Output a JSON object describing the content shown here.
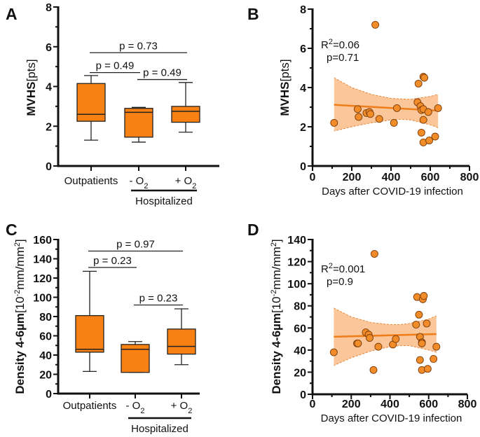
{
  "colors": {
    "box": "#f98012",
    "point": "#f28c28",
    "point_edge": "#7a3c08",
    "band": "#f9c08f",
    "band_edge": "#e8893a",
    "fit_line": "#ee7d1a",
    "axis": "#111111"
  },
  "chart_data": [
    {
      "panel": "A",
      "type": "box",
      "ylabel_main": "MVHS",
      "ylabel_unit": [
        {
          "t": "[pts]"
        }
      ],
      "ylim": [
        0,
        8
      ],
      "yticks": [
        "0",
        "2",
        "4",
        "6",
        "8"
      ],
      "ytick_values": [
        0,
        2,
        4,
        6,
        8
      ],
      "minor_step": 1,
      "categories": [
        {
          "text": "Outpatients"
        },
        {
          "text": "- O",
          "sub": "2"
        },
        {
          "text": "+ O",
          "sub": "2"
        }
      ],
      "group_label": "Hospitalized",
      "boxes": [
        {
          "min": 1.3,
          "q1": 2.25,
          "median": 2.6,
          "q3": 4.15,
          "max": 4.55
        },
        {
          "min": 1.2,
          "q1": 1.45,
          "median": 2.7,
          "q3": 2.9,
          "max": 2.95
        },
        {
          "min": 1.7,
          "q1": 2.2,
          "median": 2.75,
          "q3": 3.0,
          "max": 4.2
        }
      ],
      "comparisons": [
        {
          "from": 0,
          "to": 2,
          "y": 5.7,
          "label": "p = 0.73"
        },
        {
          "from": 0,
          "to": 1,
          "y": 4.7,
          "label": "p = 0.49"
        },
        {
          "from": 1,
          "to": 2,
          "y": 4.35,
          "label": "p = 0.49"
        }
      ]
    },
    {
      "panel": "B",
      "type": "scatter",
      "ylabel_main": "MVHS",
      "ylabel_unit": [
        {
          "t": "[pts]"
        }
      ],
      "xlabel": "Days after COVID-19 infection",
      "xlim": [
        0,
        800
      ],
      "xticks": [
        "0",
        "200",
        "400",
        "600",
        "800"
      ],
      "xtick_values": [
        0,
        200,
        400,
        600,
        800
      ],
      "x_minor_step": 100,
      "ylim": [
        0,
        8
      ],
      "yticks": [
        "0",
        "2",
        "4",
        "6",
        "8"
      ],
      "ytick_values": [
        0,
        2,
        4,
        6,
        8
      ],
      "minor_step": 1,
      "annotation": {
        "r2_prefix": "R",
        "r2_sup": "2",
        "r2_value": "=0.06",
        "p": "p=0.71"
      },
      "points": [
        [
          110,
          2.2
        ],
        [
          230,
          2.9
        ],
        [
          235,
          2.5
        ],
        [
          275,
          2.7
        ],
        [
          290,
          2.75
        ],
        [
          295,
          2.65
        ],
        [
          320,
          7.2
        ],
        [
          340,
          2.4
        ],
        [
          415,
          2.2
        ],
        [
          430,
          2.95
        ],
        [
          535,
          3.25
        ],
        [
          540,
          4.2
        ],
        [
          550,
          3.05
        ],
        [
          555,
          2.85
        ],
        [
          555,
          1.7
        ],
        [
          565,
          2.9
        ],
        [
          565,
          2.35
        ],
        [
          565,
          1.2
        ],
        [
          565,
          4.55
        ],
        [
          570,
          4.5
        ],
        [
          590,
          2.75
        ],
        [
          595,
          1.3
        ],
        [
          625,
          1.5
        ],
        [
          640,
          2.95
        ]
      ],
      "fit": {
        "x": [
          110,
          640
        ],
        "y": [
          3.12,
          2.82
        ]
      },
      "ci_band": {
        "x": [
          110,
          200,
          300,
          400,
          450,
          500,
          600,
          640
        ],
        "lower": [
          1.78,
          2.0,
          2.2,
          2.35,
          2.38,
          2.35,
          2.1,
          1.95
        ],
        "upper": [
          4.5,
          4.0,
          3.65,
          3.45,
          3.42,
          3.4,
          3.55,
          3.65
        ]
      }
    },
    {
      "panel": "C",
      "type": "box",
      "ylabel_main": "Density 4-6µm",
      "ylabel_unit": [
        {
          "t": "[10"
        },
        {
          "t": "-2",
          "sup": true
        },
        {
          "t": "mm/mm"
        },
        {
          "t": "2",
          "sup": true
        },
        {
          "t": "]"
        }
      ],
      "ylim": [
        0,
        160
      ],
      "yticks": [
        "0",
        "20",
        "40",
        "60",
        "80",
        "100",
        "120",
        "140",
        "160"
      ],
      "ytick_values": [
        0,
        20,
        40,
        60,
        80,
        100,
        120,
        140,
        160
      ],
      "minor_step": 10,
      "categories": [
        {
          "text": "Outpatients"
        },
        {
          "text": "- O",
          "sub": "2"
        },
        {
          "text": "+ O",
          "sub": "2"
        }
      ],
      "group_label": "Hospitalized",
      "boxes": [
        {
          "min": 23,
          "q1": 43,
          "median": 46,
          "q3": 81,
          "max": 127
        },
        {
          "min": 22,
          "q1": 22,
          "median": 46,
          "q3": 51,
          "max": 54
        },
        {
          "min": 30,
          "q1": 41,
          "median": 49,
          "q3": 67,
          "max": 88
        }
      ],
      "comparisons": [
        {
          "from": 0,
          "to": 2,
          "y": 148,
          "label": "p = 0.97"
        },
        {
          "from": 0,
          "to": 1,
          "y": 131,
          "label": "p = 0.23"
        },
        {
          "from": 1,
          "to": 2,
          "y": 92,
          "label": "p = 0.23"
        }
      ]
    },
    {
      "panel": "D",
      "type": "scatter",
      "ylabel_main": "Density 4-6µm",
      "ylabel_unit": [
        {
          "t": "[10"
        },
        {
          "t": "-2",
          "sup": true
        },
        {
          "t": "mm/mm"
        },
        {
          "t": "2",
          "sup": true
        },
        {
          "t": "]"
        }
      ],
      "xlabel": "Days after COVID-19 infection",
      "xlim": [
        0,
        800
      ],
      "xticks": [
        "0",
        "200",
        "400",
        "600",
        "800"
      ],
      "xtick_values": [
        0,
        200,
        400,
        600,
        800
      ],
      "x_minor_step": 100,
      "ylim": [
        0,
        140
      ],
      "yticks": [
        "0",
        "20",
        "40",
        "60",
        "80",
        "100",
        "120",
        "140"
      ],
      "ytick_values": [
        0,
        20,
        40,
        60,
        80,
        100,
        120,
        140
      ],
      "minor_step": 10,
      "annotation": {
        "r2_prefix": "R",
        "r2_sup": "2",
        "r2_value": "=0.001",
        "p": "p=0.9"
      },
      "points": [
        [
          110,
          38
        ],
        [
          230,
          46
        ],
        [
          235,
          46
        ],
        [
          275,
          56
        ],
        [
          290,
          54
        ],
        [
          295,
          51
        ],
        [
          315,
          22
        ],
        [
          320,
          127
        ],
        [
          340,
          43
        ],
        [
          415,
          45
        ],
        [
          430,
          50
        ],
        [
          535,
          63
        ],
        [
          540,
          88
        ],
        [
          550,
          72
        ],
        [
          555,
          52
        ],
        [
          555,
          31
        ],
        [
          565,
          47
        ],
        [
          565,
          46
        ],
        [
          565,
          22
        ],
        [
          570,
          86
        ],
        [
          575,
          89
        ],
        [
          590,
          64
        ],
        [
          595,
          23
        ],
        [
          625,
          32
        ],
        [
          640,
          43
        ]
      ],
      "fit": {
        "x": [
          110,
          640
        ],
        "y": [
          52,
          54.5
        ]
      },
      "ci_band": {
        "x": [
          110,
          200,
          300,
          400,
          450,
          500,
          600,
          640
        ],
        "lower": [
          26,
          33,
          39,
          43,
          44,
          44,
          40,
          38
        ],
        "upper": [
          78,
          70,
          65,
          63,
          63,
          64,
          68,
          71
        ]
      }
    }
  ]
}
